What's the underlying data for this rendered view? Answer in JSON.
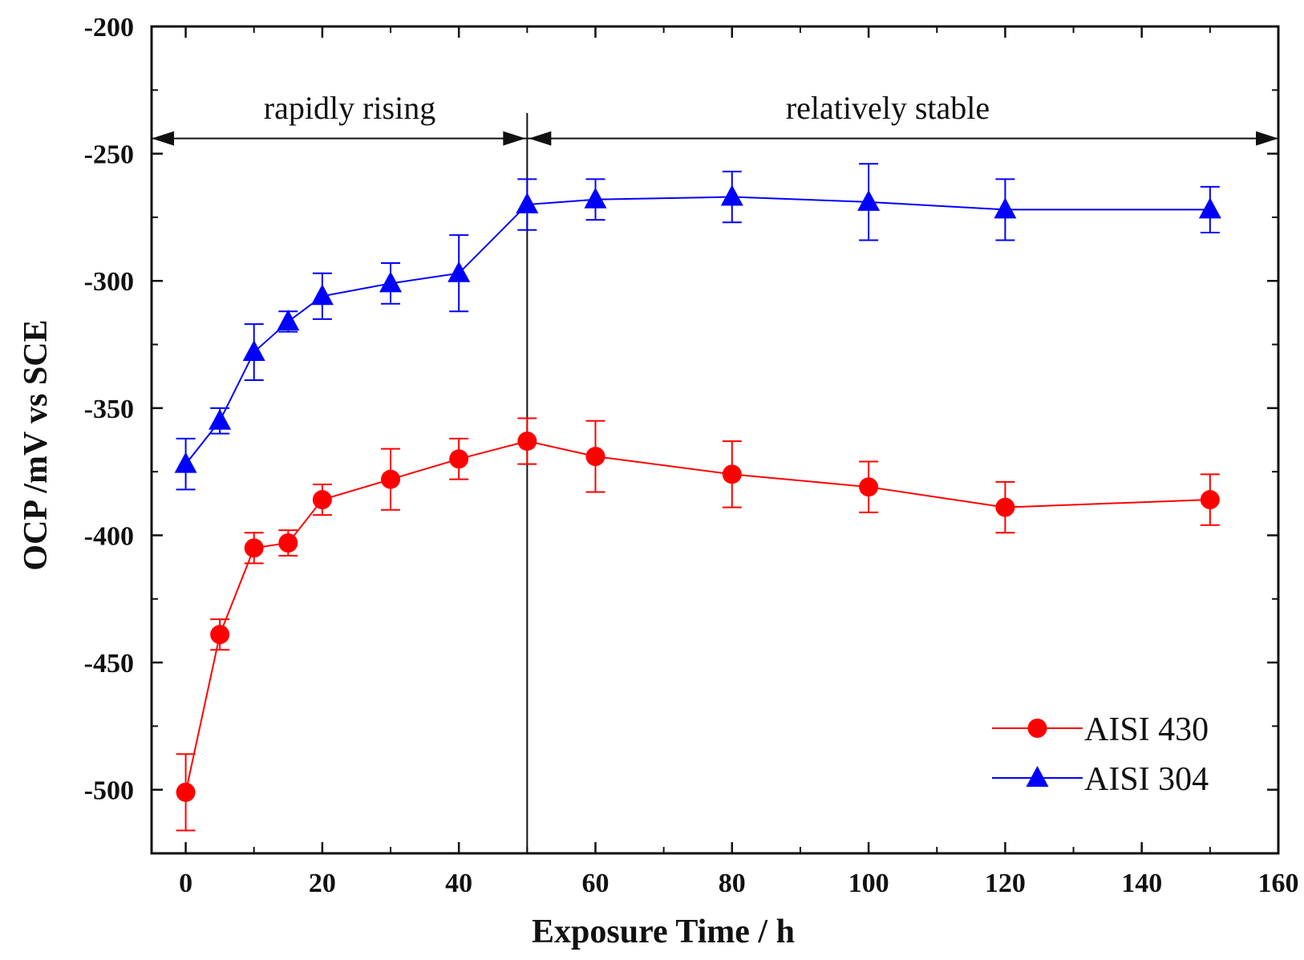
{
  "chart_data": {
    "type": "line",
    "xlabel": "Exposure Time / h",
    "ylabel": "OCP /mV vs SCE",
    "xlim": [
      -5,
      160
    ],
    "ylim": [
      -525,
      -200
    ],
    "xticks": [
      0,
      20,
      40,
      60,
      80,
      100,
      120,
      140,
      160
    ],
    "yticks": [
      -500,
      -450,
      -400,
      -350,
      -300,
      -250,
      -200
    ],
    "grid": false,
    "legend_position": "bottom-right",
    "x": [
      0,
      5,
      10,
      15,
      20,
      30,
      40,
      50,
      60,
      80,
      100,
      120,
      150
    ],
    "series": [
      {
        "name": "AISI 430",
        "color": "#ff0000",
        "marker": "circle",
        "values": [
          -501,
          -439,
          -405,
          -403,
          -386,
          -378,
          -370,
          -363,
          -369,
          -376,
          -381,
          -389,
          -386
        ],
        "errors": [
          15,
          6,
          6,
          5,
          6,
          12,
          8,
          9,
          14,
          13,
          10,
          10,
          10
        ]
      },
      {
        "name": "AISI 304",
        "color": "#0000ff",
        "marker": "triangle",
        "values": [
          -372,
          -355,
          -328,
          -316,
          -306,
          -301,
          -297,
          -270,
          -268,
          -267,
          -269,
          -272,
          -272
        ],
        "errors": [
          10,
          5,
          11,
          4,
          9,
          8,
          15,
          10,
          8,
          10,
          15,
          12,
          9
        ]
      }
    ],
    "annotations": [
      {
        "text": "rapidly rising",
        "x_range": [
          -5,
          50
        ],
        "y": -244
      },
      {
        "text": "relatively stable",
        "x_range": [
          50,
          160
        ],
        "y": -244
      }
    ],
    "divider_x": 50
  }
}
